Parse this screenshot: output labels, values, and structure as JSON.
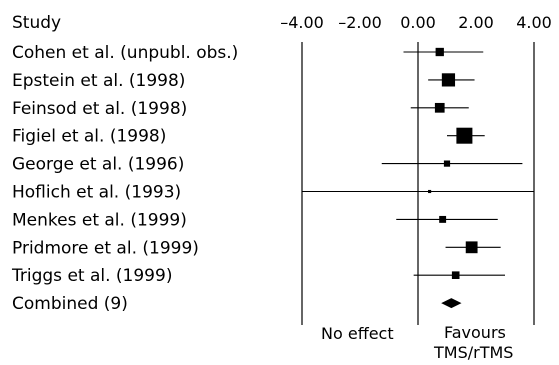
{
  "chart_data": {
    "type": "forest",
    "header": "Study",
    "xlim": [
      -4.0,
      4.0
    ],
    "x_ticks": [
      -4.0,
      -2.0,
      0.0,
      2.0,
      4.0
    ],
    "x_tick_labels": [
      "–4.00",
      "–2.00",
      "0.00",
      "2.00",
      "4.00"
    ],
    "reference_x": 0.0,
    "grid": false,
    "studies": [
      {
        "label": "Cohen et al. (unpubl. obs.)",
        "estimate": 0.75,
        "ci": [
          -0.5,
          2.25
        ],
        "weight": 0.45
      },
      {
        "label": "Epstein et al. (1998)",
        "estimate": 1.05,
        "ci": [
          0.35,
          1.95
        ],
        "weight": 0.8
      },
      {
        "label": "Feinsod et al. (1998)",
        "estimate": 0.75,
        "ci": [
          -0.25,
          1.75
        ],
        "weight": 0.55
      },
      {
        "label": "Figiel et al. (1998)",
        "estimate": 1.6,
        "ci": [
          1.0,
          2.3
        ],
        "weight": 1.0
      },
      {
        "label": "George et al. (1996)",
        "estimate": 1.0,
        "ci": [
          -1.25,
          3.6
        ],
        "weight": 0.3
      },
      {
        "label": "Hoflich et al. (1993)",
        "estimate": 0.4,
        "ci": [
          -4.5,
          5.0
        ],
        "weight": 0.08
      },
      {
        "label": "Menkes et al. (1999)",
        "estimate": 0.85,
        "ci": [
          -0.75,
          2.75
        ],
        "weight": 0.35
      },
      {
        "label": "Pridmore et al. (1999)",
        "estimate": 1.85,
        "ci": [
          0.95,
          2.85
        ],
        "weight": 0.7
      },
      {
        "label": "Triggs et al. (1999)",
        "estimate": 1.3,
        "ci": [
          -0.15,
          3.0
        ],
        "weight": 0.4
      }
    ],
    "combined": {
      "label": "Combined (9)",
      "estimate": 1.15,
      "ci": [
        0.8,
        1.5
      ]
    },
    "annotations": {
      "left": "No effect",
      "right_line1": "Favours",
      "right_line2": "TMS/rTMS"
    }
  }
}
